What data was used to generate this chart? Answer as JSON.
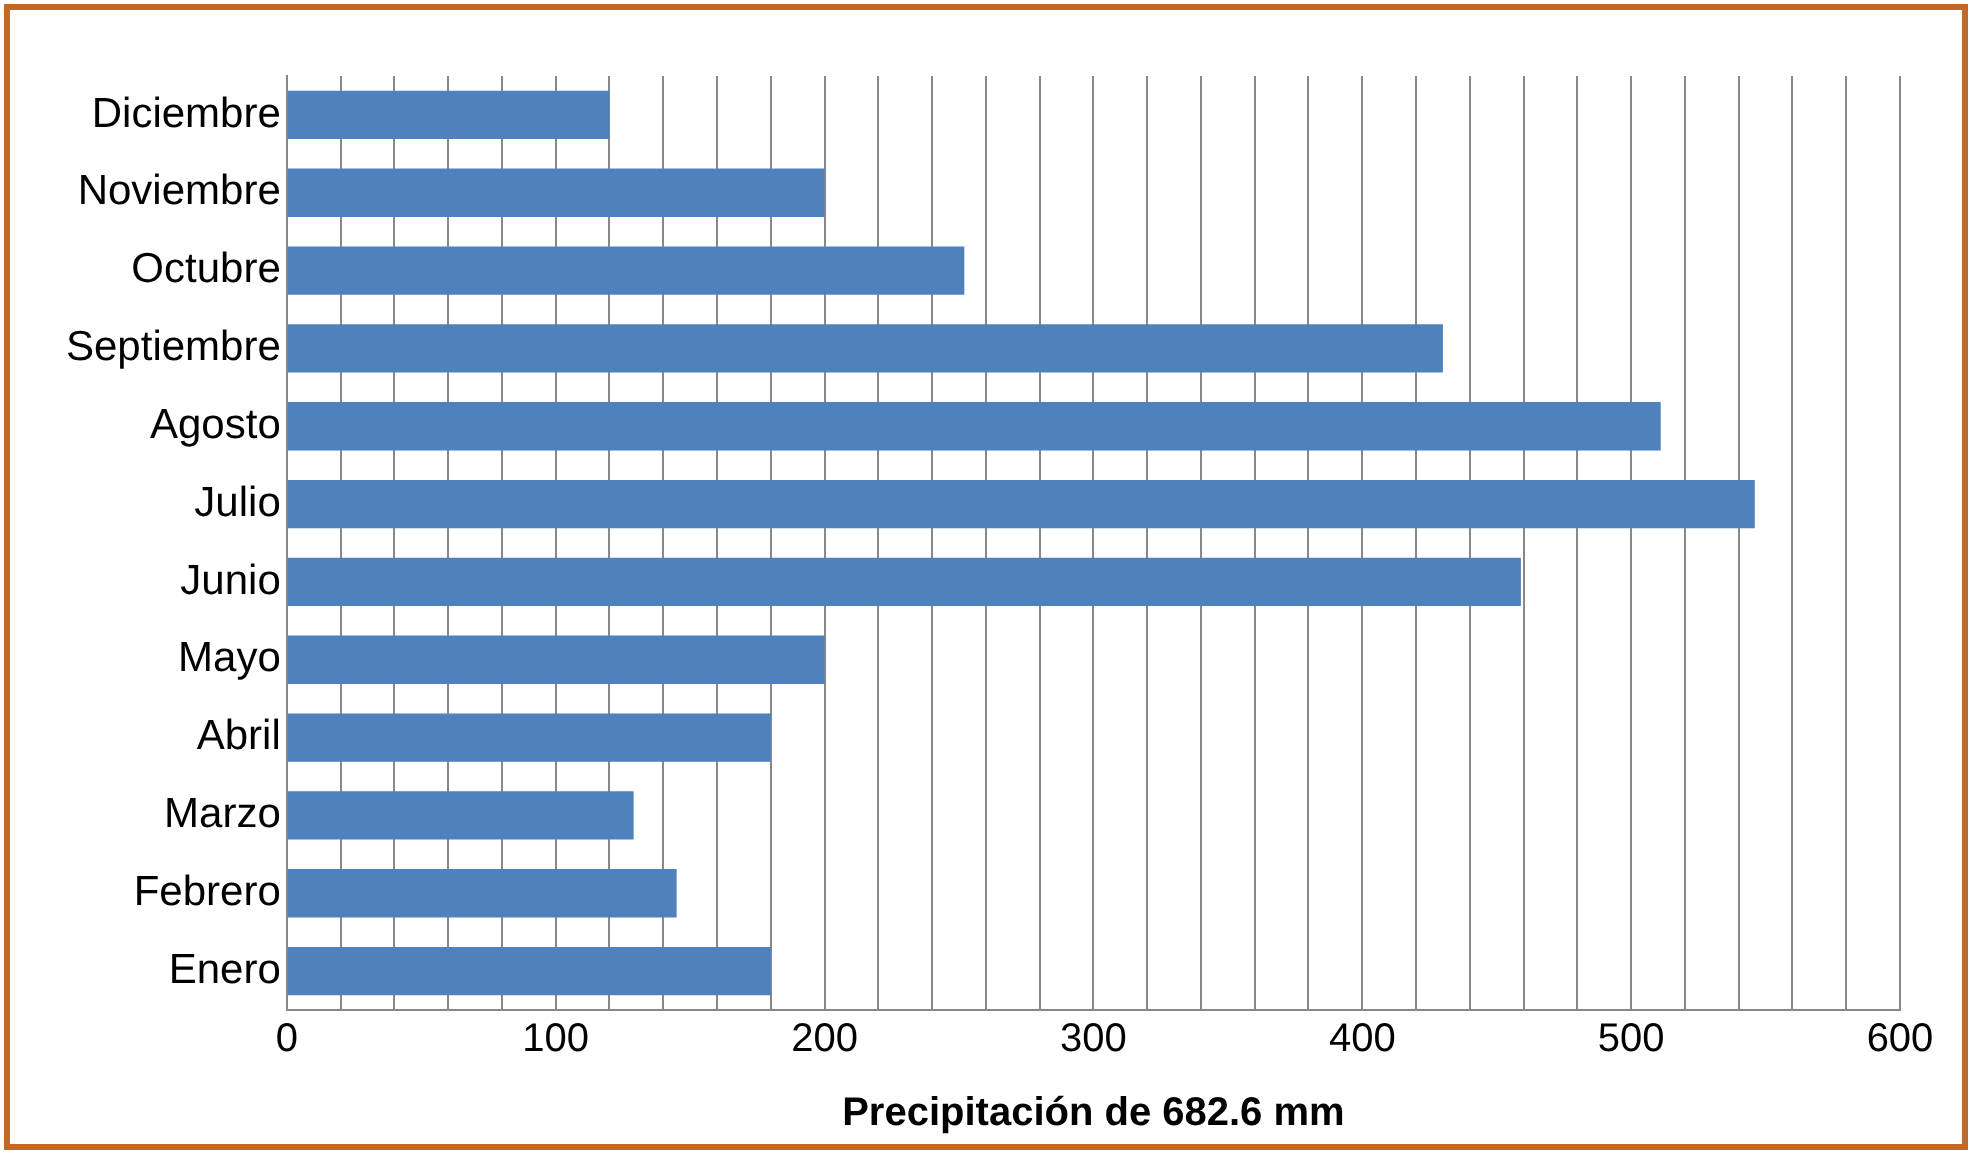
{
  "chart_data": {
    "type": "bar",
    "orientation": "horizontal",
    "xlabel": "Precipitación de 682.6 mm",
    "categories": [
      "Diciembre",
      "Noviembre",
      "Octubre",
      "Septiembre",
      "Agosto",
      "Julio",
      "Junio",
      "Mayo",
      "Abril",
      "Marzo",
      "Febrero",
      "Enero"
    ],
    "values": [
      120,
      200,
      252,
      430,
      511,
      546,
      459,
      200,
      180,
      129,
      145,
      180
    ],
    "color": "#4f81bd",
    "xlim": [
      0,
      600
    ],
    "xticks": [
      0,
      {
        "value": 20,
        "label": null
      },
      {
        "value": 40,
        "label": null
      },
      {
        "value": 60,
        "label": null
      },
      {
        "value": 80,
        "label": null
      },
      100,
      {
        "value": 120,
        "label": null
      },
      {
        "value": 140,
        "label": null
      },
      {
        "value": 160,
        "label": null
      },
      {
        "value": 180,
        "label": null
      },
      200,
      {
        "value": 220,
        "label": null
      },
      {
        "value": 240,
        "label": null
      },
      {
        "value": 260,
        "label": null
      },
      {
        "value": 280,
        "label": null
      },
      300,
      {
        "value": 320,
        "label": null
      },
      {
        "value": 340,
        "label": null
      },
      {
        "value": 360,
        "label": null
      },
      {
        "value": 380,
        "label": null
      },
      400,
      {
        "value": 420,
        "label": null
      },
      {
        "value": 440,
        "label": null
      },
      {
        "value": 460,
        "label": null
      },
      {
        "value": 480,
        "label": null
      },
      500,
      {
        "value": 520,
        "label": null
      },
      {
        "value": 540,
        "label": null
      },
      {
        "value": 560,
        "label": null
      },
      {
        "value": 580,
        "label": null
      },
      600
    ],
    "grid": "x",
    "legend": false
  }
}
